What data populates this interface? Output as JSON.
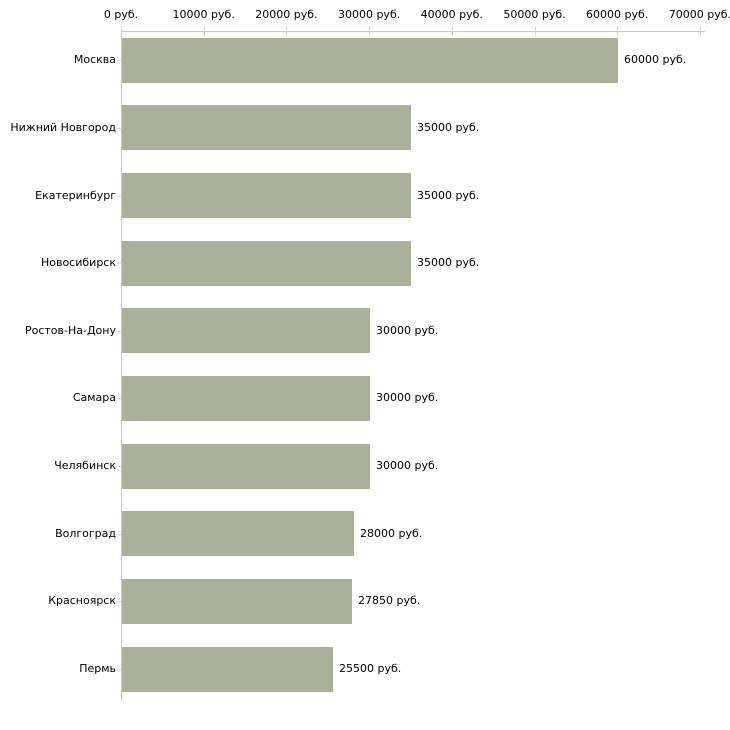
{
  "chart_data": {
    "type": "bar",
    "orientation": "horizontal",
    "title": "",
    "xlabel": "",
    "ylabel": "",
    "grid": "off",
    "legend": "none",
    "categories": [
      "Москва",
      "Нижний Новгород",
      "Екатеринбург",
      "Новосибирск",
      "Ростов-На-Дону",
      "Самара",
      "Челябинск",
      "Волгоград",
      "Красноярск",
      "Пермь"
    ],
    "values": [
      60000,
      35000,
      35000,
      35000,
      30000,
      30000,
      30000,
      28000,
      27850,
      25500
    ],
    "value_labels": [
      "60000 руб.",
      "35000 руб.",
      "35000 руб.",
      "35000 руб.",
      "30000 руб.",
      "30000 руб.",
      "30000 руб.",
      "28000 руб.",
      "27850 руб.",
      "25500 руб."
    ],
    "x_axis": {
      "min": 0,
      "max": 70000,
      "tick_values": [
        0,
        10000,
        20000,
        30000,
        40000,
        50000,
        60000,
        70000
      ],
      "tick_labels": [
        "0 руб.",
        "10000 руб.",
        "20000 руб.",
        "30000 руб.",
        "40000 руб.",
        "50000 руб.",
        "60000 руб.",
        "70000 руб."
      ]
    },
    "colors": {
      "bar": "#abb198",
      "axis_line": "#c9c9c9",
      "tick": "#d8d8b2",
      "text": "#000000",
      "background": "#ffffff"
    }
  }
}
